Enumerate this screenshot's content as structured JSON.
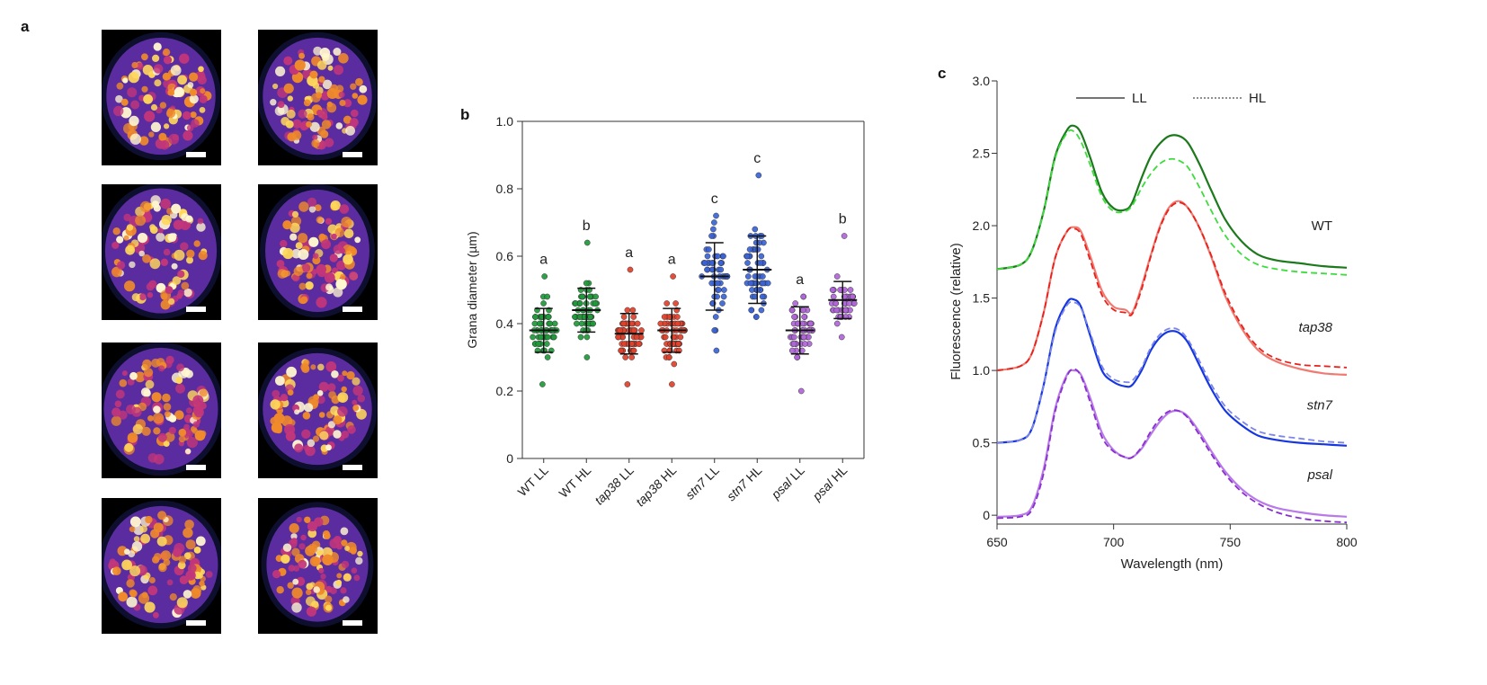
{
  "panels": {
    "a": "a",
    "b": "b",
    "c": "c"
  },
  "micrographs": {
    "rows": 4,
    "cols": 2,
    "palette": {
      "bg": "#000000",
      "halo": "#1a1b55",
      "dark": "#5b2ca0",
      "mid": "#c2367a",
      "orange": "#f08a2a",
      "bright": "#ffd75a",
      "hot": "#fff7d0"
    }
  },
  "chart_data": [
    {
      "id": "b",
      "type": "scatter",
      "subtype": "dot-plot-with-mean-and-sd",
      "ylabel": "Grana diameter (µm)",
      "ylim": [
        0,
        1.0
      ],
      "yticks": [
        "0",
        "0.2",
        "0.4",
        "0.6",
        "0.8",
        "1.0"
      ],
      "categories": [
        {
          "prefix": "WT",
          "italic": false,
          "suffix": "LL"
        },
        {
          "prefix": "WT",
          "italic": false,
          "suffix": "HL"
        },
        {
          "prefix": "tap38",
          "italic": true,
          "suffix": "LL"
        },
        {
          "prefix": "tap38",
          "italic": true,
          "suffix": "HL"
        },
        {
          "prefix": "stn7",
          "italic": true,
          "suffix": "LL"
        },
        {
          "prefix": "stn7",
          "italic": true,
          "suffix": "HL"
        },
        {
          "prefix": "psal",
          "italic": true,
          "suffix": "LL"
        },
        {
          "prefix": "psal",
          "italic": true,
          "suffix": "HL"
        }
      ],
      "series": [
        {
          "name": "WT LL",
          "color": "#1f9a3a",
          "mean": 0.38,
          "sd": 0.065,
          "min": 0.22,
          "max": 0.54,
          "n": 60,
          "letter": "a"
        },
        {
          "name": "WT HL",
          "color": "#1f9a3a",
          "mean": 0.44,
          "sd": 0.065,
          "min": 0.3,
          "max": 0.64,
          "n": 60,
          "letter": "b"
        },
        {
          "name": "tap38 LL",
          "color": "#e2412b",
          "mean": 0.37,
          "sd": 0.06,
          "min": 0.22,
          "max": 0.56,
          "n": 60,
          "letter": "a"
        },
        {
          "name": "tap38 HL",
          "color": "#e2412b",
          "mean": 0.38,
          "sd": 0.065,
          "min": 0.22,
          "max": 0.54,
          "n": 60,
          "letter": "a"
        },
        {
          "name": "stn7 LL",
          "color": "#3a63d6",
          "mean": 0.54,
          "sd": 0.1,
          "min": 0.32,
          "max": 0.72,
          "n": 55,
          "letter": "c"
        },
        {
          "name": "stn7 HL",
          "color": "#3a63d6",
          "mean": 0.56,
          "sd": 0.1,
          "min": 0.42,
          "max": 0.84,
          "n": 60,
          "letter": "c"
        },
        {
          "name": "psal LL",
          "color": "#b065d8",
          "mean": 0.38,
          "sd": 0.07,
          "min": 0.2,
          "max": 0.48,
          "n": 55,
          "letter": "a"
        },
        {
          "name": "psal HL",
          "color": "#b065d8",
          "mean": 0.47,
          "sd": 0.055,
          "min": 0.36,
          "max": 0.66,
          "n": 45,
          "letter": "b"
        }
      ]
    },
    {
      "id": "c",
      "type": "line",
      "xlabel": "Wavelength (nm)",
      "ylabel": "Fluorescence (relative)",
      "xlim": [
        650,
        800
      ],
      "ylim": [
        0,
        3.0
      ],
      "xticks": [
        "650",
        "700",
        "750",
        "800"
      ],
      "yticks": [
        "0",
        "0.5",
        "1.0",
        "1.5",
        "2.0",
        "2.5",
        "3.0"
      ],
      "legend": {
        "position": "top",
        "items": [
          {
            "label": "LL",
            "style": "solid"
          },
          {
            "label": "HL",
            "style": "dashed"
          }
        ]
      },
      "x": [
        650,
        660,
        665,
        670,
        675,
        680,
        683,
        686,
        690,
        695,
        700,
        705,
        708,
        712,
        716,
        720,
        724,
        728,
        732,
        737,
        742,
        748,
        755,
        762,
        770,
        780,
        790,
        800
      ],
      "series": [
        {
          "name": "WT",
          "label_italic": false,
          "offset": 1.7,
          "ll_color": "#1c7a1c",
          "hl_color": "#3ddc3d",
          "ll": [
            1.7,
            1.73,
            1.83,
            2.1,
            2.48,
            2.66,
            2.69,
            2.64,
            2.47,
            2.23,
            2.12,
            2.11,
            2.16,
            2.33,
            2.48,
            2.57,
            2.62,
            2.62,
            2.57,
            2.42,
            2.24,
            2.04,
            1.89,
            1.8,
            1.76,
            1.74,
            1.72,
            1.71
          ],
          "hl": [
            1.7,
            1.73,
            1.83,
            2.1,
            2.47,
            2.64,
            2.65,
            2.58,
            2.42,
            2.2,
            2.1,
            2.1,
            2.14,
            2.26,
            2.36,
            2.43,
            2.46,
            2.45,
            2.4,
            2.26,
            2.1,
            1.93,
            1.8,
            1.73,
            1.7,
            1.68,
            1.67,
            1.66
          ]
        },
        {
          "name": "tap38",
          "label_italic": true,
          "offset": 1.0,
          "ll_color": "#f07a72",
          "hl_color": "#e8221a",
          "ll": [
            1.0,
            1.03,
            1.12,
            1.4,
            1.78,
            1.96,
            1.99,
            1.96,
            1.79,
            1.55,
            1.44,
            1.42,
            1.4,
            1.58,
            1.8,
            2.0,
            2.13,
            2.17,
            2.12,
            1.98,
            1.78,
            1.51,
            1.29,
            1.14,
            1.06,
            1.01,
            0.98,
            0.97
          ],
          "hl": [
            1.0,
            1.03,
            1.12,
            1.4,
            1.78,
            1.96,
            1.98,
            1.94,
            1.76,
            1.52,
            1.42,
            1.4,
            1.39,
            1.56,
            1.79,
            1.99,
            2.12,
            2.16,
            2.12,
            1.98,
            1.79,
            1.53,
            1.31,
            1.16,
            1.08,
            1.04,
            1.03,
            1.02
          ]
        },
        {
          "name": "stn7",
          "label_italic": true,
          "offset": 0.5,
          "ll_color": "#1536e0",
          "hl_color": "#7c86e8",
          "ll": [
            0.5,
            0.52,
            0.6,
            0.9,
            1.29,
            1.47,
            1.49,
            1.44,
            1.24,
            1.0,
            0.92,
            0.89,
            0.9,
            1.0,
            1.14,
            1.23,
            1.27,
            1.26,
            1.19,
            1.03,
            0.87,
            0.72,
            0.62,
            0.55,
            0.52,
            0.5,
            0.49,
            0.48
          ],
          "hl": [
            0.5,
            0.52,
            0.6,
            0.9,
            1.27,
            1.45,
            1.47,
            1.43,
            1.26,
            1.03,
            0.94,
            0.92,
            0.93,
            1.02,
            1.16,
            1.25,
            1.29,
            1.28,
            1.21,
            1.06,
            0.9,
            0.75,
            0.65,
            0.58,
            0.55,
            0.53,
            0.51,
            0.5
          ]
        },
        {
          "name": "psal",
          "label_italic": true,
          "offset": 0.0,
          "ll_color": "#b87ae8",
          "hl_color": "#8a2fd0",
          "ll": [
            -0.01,
            0.0,
            0.06,
            0.32,
            0.74,
            0.97,
            1.0,
            0.97,
            0.81,
            0.57,
            0.45,
            0.4,
            0.4,
            0.46,
            0.56,
            0.65,
            0.71,
            0.72,
            0.68,
            0.57,
            0.44,
            0.3,
            0.18,
            0.1,
            0.05,
            0.02,
            0.0,
            -0.01
          ],
          "hl": [
            -0.02,
            -0.01,
            0.04,
            0.29,
            0.72,
            0.96,
            1.01,
            0.96,
            0.78,
            0.54,
            0.44,
            0.4,
            0.4,
            0.47,
            0.58,
            0.67,
            0.72,
            0.72,
            0.67,
            0.55,
            0.42,
            0.28,
            0.16,
            0.08,
            0.02,
            -0.02,
            -0.04,
            -0.05
          ]
        }
      ]
    }
  ]
}
